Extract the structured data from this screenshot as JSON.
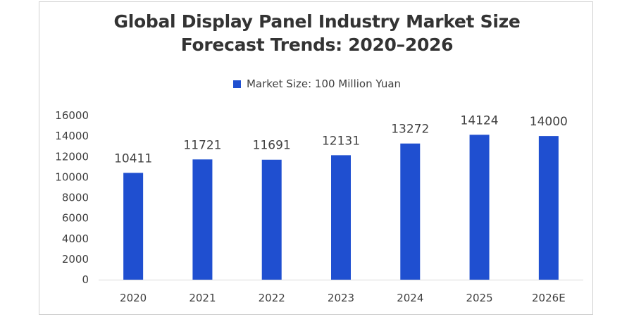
{
  "chart_data": {
    "type": "bar",
    "title": "Global Display Panel Industry Market Size Forecast Trends: 2020–2026",
    "title_lines": [
      "Global Display Panel Industry Market Size",
      "Forecast Trends: 2020–2026"
    ],
    "xlabel": "",
    "ylabel": "",
    "categories": [
      "2020",
      "2021",
      "2022",
      "2023",
      "2024",
      "2025",
      "2026E"
    ],
    "series": [
      {
        "name": "Market Size: 100 Million Yuan",
        "color": "#1f4fd0",
        "values": [
          10411,
          11721,
          11691,
          12131,
          13272,
          14124,
          14000
        ]
      }
    ],
    "ylim": [
      0,
      16000
    ],
    "yticks": [
      0,
      2000,
      4000,
      6000,
      8000,
      10000,
      12000,
      14000,
      16000
    ],
    "grid": false,
    "legend": "top-center",
    "data_labels": true
  }
}
